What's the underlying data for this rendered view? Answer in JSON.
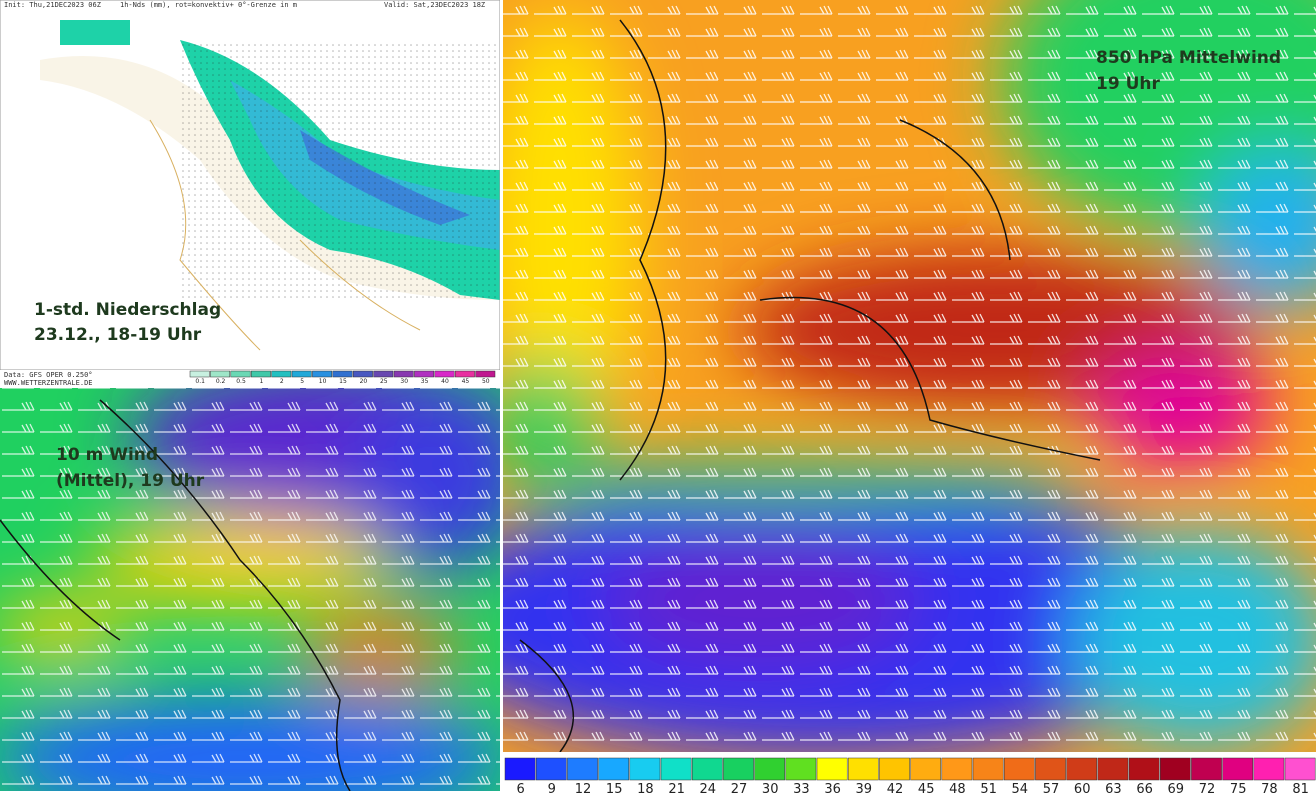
{
  "precip_panel": {
    "init": "Init: Thu,21DEC2023 06Z",
    "parameter": "1h-Nds (mm), rot=konvektiv+ 0°-Grenze in m",
    "valid": "Valid: Sat,23DEC2023 18Z",
    "annotation": [
      "1-std. Niederschlag",
      "23.12., 18-19 Uhr"
    ],
    "source": "Data: GFS OPER 0.250°",
    "site": "WWW.WETTERZENTRALE.DE",
    "legend": {
      "values": [
        "0.1",
        "0.2",
        "0.5",
        "1",
        "2",
        "5",
        "10",
        "15",
        "20",
        "25",
        "30",
        "35",
        "40",
        "45",
        "50"
      ],
      "colors": [
        "#c8f0e0",
        "#9ee6c8",
        "#6ad8b4",
        "#40c8a8",
        "#22c0c0",
        "#20a8d8",
        "#2890e0",
        "#3070d0",
        "#4858c0",
        "#6848b0",
        "#8838b0",
        "#b030c0",
        "#d828c8",
        "#e830a0",
        "#c01890"
      ]
    }
  },
  "wind10m_panel": {
    "annotation": [
      "10 m Wind",
      "(Mittel), 19 Uhr"
    ]
  },
  "wind850_panel": {
    "annotation": [
      "850 hPa Mittelwind",
      "19 Uhr"
    ],
    "legend": {
      "values": [
        6,
        9,
        12,
        15,
        18,
        21,
        24,
        27,
        30,
        33,
        36,
        39,
        42,
        45,
        48,
        51,
        54,
        57,
        60,
        63,
        66,
        69,
        72,
        75,
        78,
        81
      ],
      "colors": [
        "#1a1aff",
        "#1e50ff",
        "#1e7cff",
        "#18a8ff",
        "#18ccf0",
        "#10e0c8",
        "#10d890",
        "#18d060",
        "#30d030",
        "#60e020",
        "#ffff00",
        "#ffe000",
        "#ffc400",
        "#ffac10",
        "#ff9818",
        "#f78418",
        "#f06c18",
        "#e05418",
        "#d03c18",
        "#c02818",
        "#b01018",
        "#a00020",
        "#c00050",
        "#e00080",
        "#ff20b0",
        "#ff50d0"
      ]
    }
  }
}
